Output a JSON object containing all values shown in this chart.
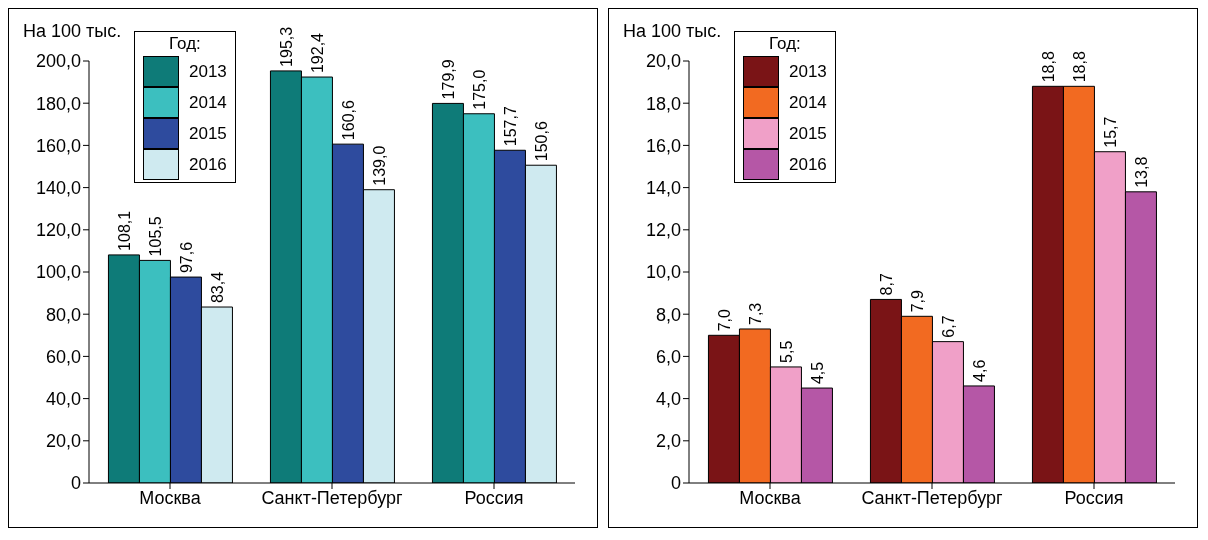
{
  "chart_data": [
    {
      "type": "bar",
      "ylabel": "На 100 тыс.",
      "legend_title": "Год:",
      "legend": "top left",
      "categories": [
        "Москва",
        "Санкт-Петербург",
        "Россия"
      ],
      "ylim": [
        0,
        200
      ],
      "yticks": [
        0,
        {
          "value": 20,
          "label": "20,0"
        },
        {
          "value": 40,
          "label": "40,0"
        },
        {
          "value": 60,
          "label": "60,0"
        },
        {
          "value": 80,
          "label": "80,0"
        },
        {
          "value": 100,
          "label": "100,0"
        },
        {
          "value": 120,
          "label": "120,0"
        },
        {
          "value": 140,
          "label": "140,0"
        },
        {
          "value": 160,
          "label": "160,0"
        },
        {
          "value": 180,
          "label": "180,0"
        },
        {
          "value": 200,
          "label": "200,0"
        }
      ],
      "series": [
        {
          "name": "2013",
          "color": "#0e7b78",
          "values": [
            108.1,
            195.3,
            179.9
          ],
          "value_labels": [
            "108,1",
            "195,3",
            "179,9"
          ]
        },
        {
          "name": "2014",
          "color": "#3cbfbf",
          "values": [
            105.5,
            192.4,
            175.0
          ],
          "value_labels": [
            "105,5",
            "192,4",
            "175,0"
          ]
        },
        {
          "name": "2015",
          "color": "#2e4b9e",
          "values": [
            97.6,
            160.6,
            157.7
          ],
          "value_labels": [
            "97,6",
            "160,6",
            "157,7"
          ]
        },
        {
          "name": "2016",
          "color": "#cfeaf0",
          "values": [
            83.4,
            139.0,
            150.6
          ],
          "value_labels": [
            "83,4",
            "139,0",
            "150,6"
          ]
        }
      ]
    },
    {
      "type": "bar",
      "ylabel": "На 100 тыс.",
      "legend_title": "Год:",
      "legend": "top left",
      "categories": [
        "Москва",
        "Санкт-Петербург",
        "Россия"
      ],
      "ylim": [
        0,
        20
      ],
      "yticks": [
        0,
        {
          "value": 2,
          "label": "2,0"
        },
        {
          "value": 4,
          "label": "4,0"
        },
        {
          "value": 6,
          "label": "6,0"
        },
        {
          "value": 8,
          "label": "8,0"
        },
        {
          "value": 10,
          "label": "10,0"
        },
        {
          "value": 12,
          "label": "12,0"
        },
        {
          "value": 14,
          "label": "14,0"
        },
        {
          "value": 16,
          "label": "16,0"
        },
        {
          "value": 18,
          "label": "18,0"
        },
        {
          "value": 20,
          "label": "20,0"
        }
      ],
      "series": [
        {
          "name": "2013",
          "color": "#7a1416",
          "values": [
            7.0,
            8.7,
            18.8
          ],
          "value_labels": [
            "7,0",
            "8,7",
            "18,8"
          ]
        },
        {
          "name": "2014",
          "color": "#f26a21",
          "values": [
            7.3,
            7.9,
            18.8
          ],
          "value_labels": [
            "7,3",
            "7,9",
            "18,8"
          ]
        },
        {
          "name": "2015",
          "color": "#f0a0c8",
          "values": [
            5.5,
            6.7,
            15.7
          ],
          "value_labels": [
            "5,5",
            "6,7",
            "15,7"
          ]
        },
        {
          "name": "2016",
          "color": "#b557a6",
          "values": [
            4.5,
            4.6,
            13.8
          ],
          "value_labels": [
            "4,5",
            "4,6",
            "13,8"
          ]
        }
      ]
    }
  ]
}
